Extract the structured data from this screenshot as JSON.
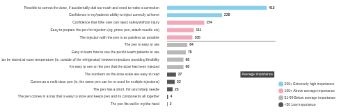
{
  "chart_data": {
    "type": "bar",
    "orientation": "horizontal",
    "categories": [
      "Possible to correct the dose, if accidentally dial too much and need to make a correction",
      "Confidence in my/patients ability to inject correctly at home",
      "Confidence that I/the user can inject safely/without injury",
      "Easy to prepare the pen for injection (eg, prime pen, attach needle etc)",
      "The injection with the pen is as painless as possible",
      "The pen is easy to use",
      "Easy to learn how to use the pen/to teach patients to use",
      "Can be stored at room temperature (ie, outside of the refrigerator) between injections providing flexibility",
      "It's easy to see on the pen that the dose has been injected",
      "The numbers on the dose scale are easy to read",
      "Comes as a multi-dose pen (ie, the same pen can be re-used for multiple injections)",
      "The pen has a short, thin and sharp needle",
      "The pen comes in a tray that is easy to store and keeps pen and its components all together",
      "The pen fits well in my/the hand"
    ],
    "series": [
      {
        "name": "200+ Extremely high importance",
        "color": "#87CEEB",
        "values": [
          413,
          228,
          null,
          null,
          null,
          null,
          null,
          null,
          null,
          null,
          null,
          null,
          null,
          null
        ]
      },
      {
        "name": "100+ Above average importance",
        "color": "#F4A7B9",
        "values": [
          null,
          null,
          154,
          111,
          105,
          null,
          null,
          null,
          null,
          null,
          null,
          null,
          null,
          null
        ]
      },
      {
        "name": "51-99 Below average importance",
        "color": "#B8B8B8",
        "values": [
          null,
          null,
          null,
          null,
          null,
          84,
          78,
          68,
          68,
          null,
          null,
          null,
          null,
          null
        ]
      },
      {
        "name": "<50 Low importance",
        "color": "#555555",
        "values": [
          null,
          null,
          null,
          null,
          null,
          null,
          null,
          null,
          null,
          37,
          32,
          23,
          4,
          2
        ]
      }
    ],
    "xlim": [
      0,
      450
    ],
    "grid": false,
    "tick_labels": "y",
    "data_labels": true,
    "legend": "lower right",
    "annotations": [
      {
        "text": "Average importance",
        "divider_after": "The injection with the pen is as painless as possible"
      }
    ]
  }
}
